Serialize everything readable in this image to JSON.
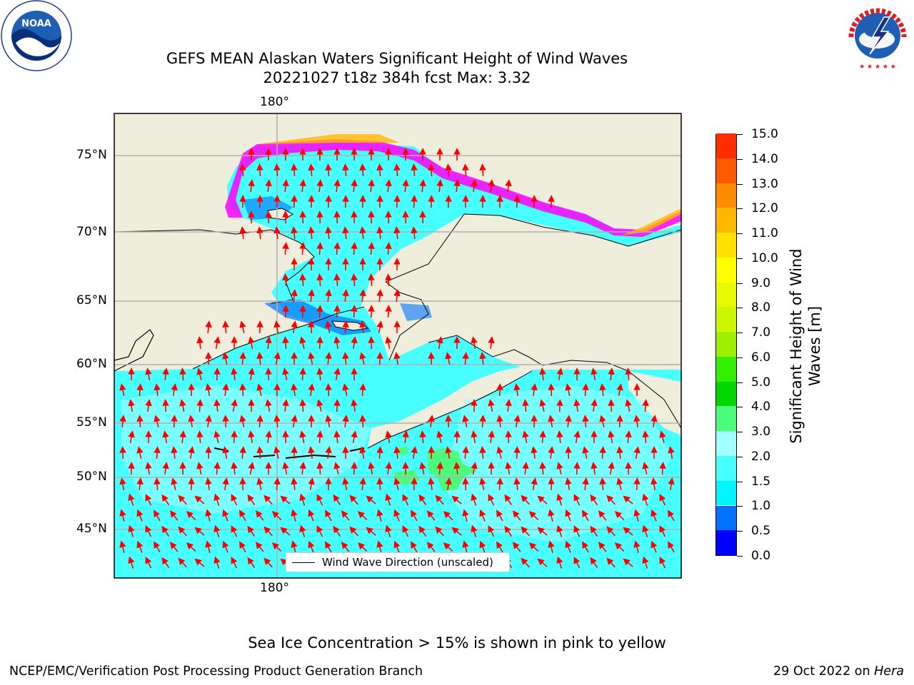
{
  "title_line1": "GEFS MEAN Alaskan Waters Significant Height of Wind Waves",
  "title_line2": "20221027 t18z 384h fcst   Max: 3.32",
  "lat_labels": [
    "75°N",
    "70°N",
    "65°N",
    "60°N",
    "55°N",
    "50°N",
    "45°N"
  ],
  "lon_label_top": "180°",
  "lon_label_bottom": "180°",
  "legend_label": "Wind Wave Direction (unscaled)",
  "colorbar": {
    "title_line1": "Significant Height of Wind",
    "title_line2": "Waves [m]",
    "tick_labels": [
      "0.0",
      "0.5",
      "1.0",
      "1.5",
      "2.0",
      "3.0",
      "4.0",
      "5.0",
      "6.0",
      "7.0",
      "8.0",
      "9.0",
      "10.0",
      "11.0",
      "12.0",
      "13.0",
      "14.0",
      "15.0"
    ],
    "colors": [
      "#0000ff",
      "#0072ff",
      "#00f5ff",
      "#48ffff",
      "#a2ffff",
      "#4dfb7c",
      "#00d700",
      "#33f000",
      "#9ef000",
      "#ccf700",
      "#e6f900",
      "#ffff00",
      "#ffe000",
      "#ffb800",
      "#ff8c00",
      "#ff5a00",
      "#ff2d00"
    ]
  },
  "sea_ice_note": "Sea Ice Concentration > 15% is shown in pink to yellow",
  "footer_left": "NCEP/EMC/Verification Post Processing Product Generation Branch",
  "footer_right_prefix": "29 Oct 2022 on ",
  "footer_right_host": "Hera",
  "logos": {
    "left": "noaa-logo",
    "left_text": "NOAA",
    "right": "nws-logo",
    "right_text": "NATIONAL WEATHER SERVICE"
  },
  "colors": {
    "land": "#efeddb",
    "ocean_base": "#48ffff",
    "ice_magenta": "#ff00ff",
    "arrow": "#ff0000",
    "grid": "#b0b0b0"
  }
}
